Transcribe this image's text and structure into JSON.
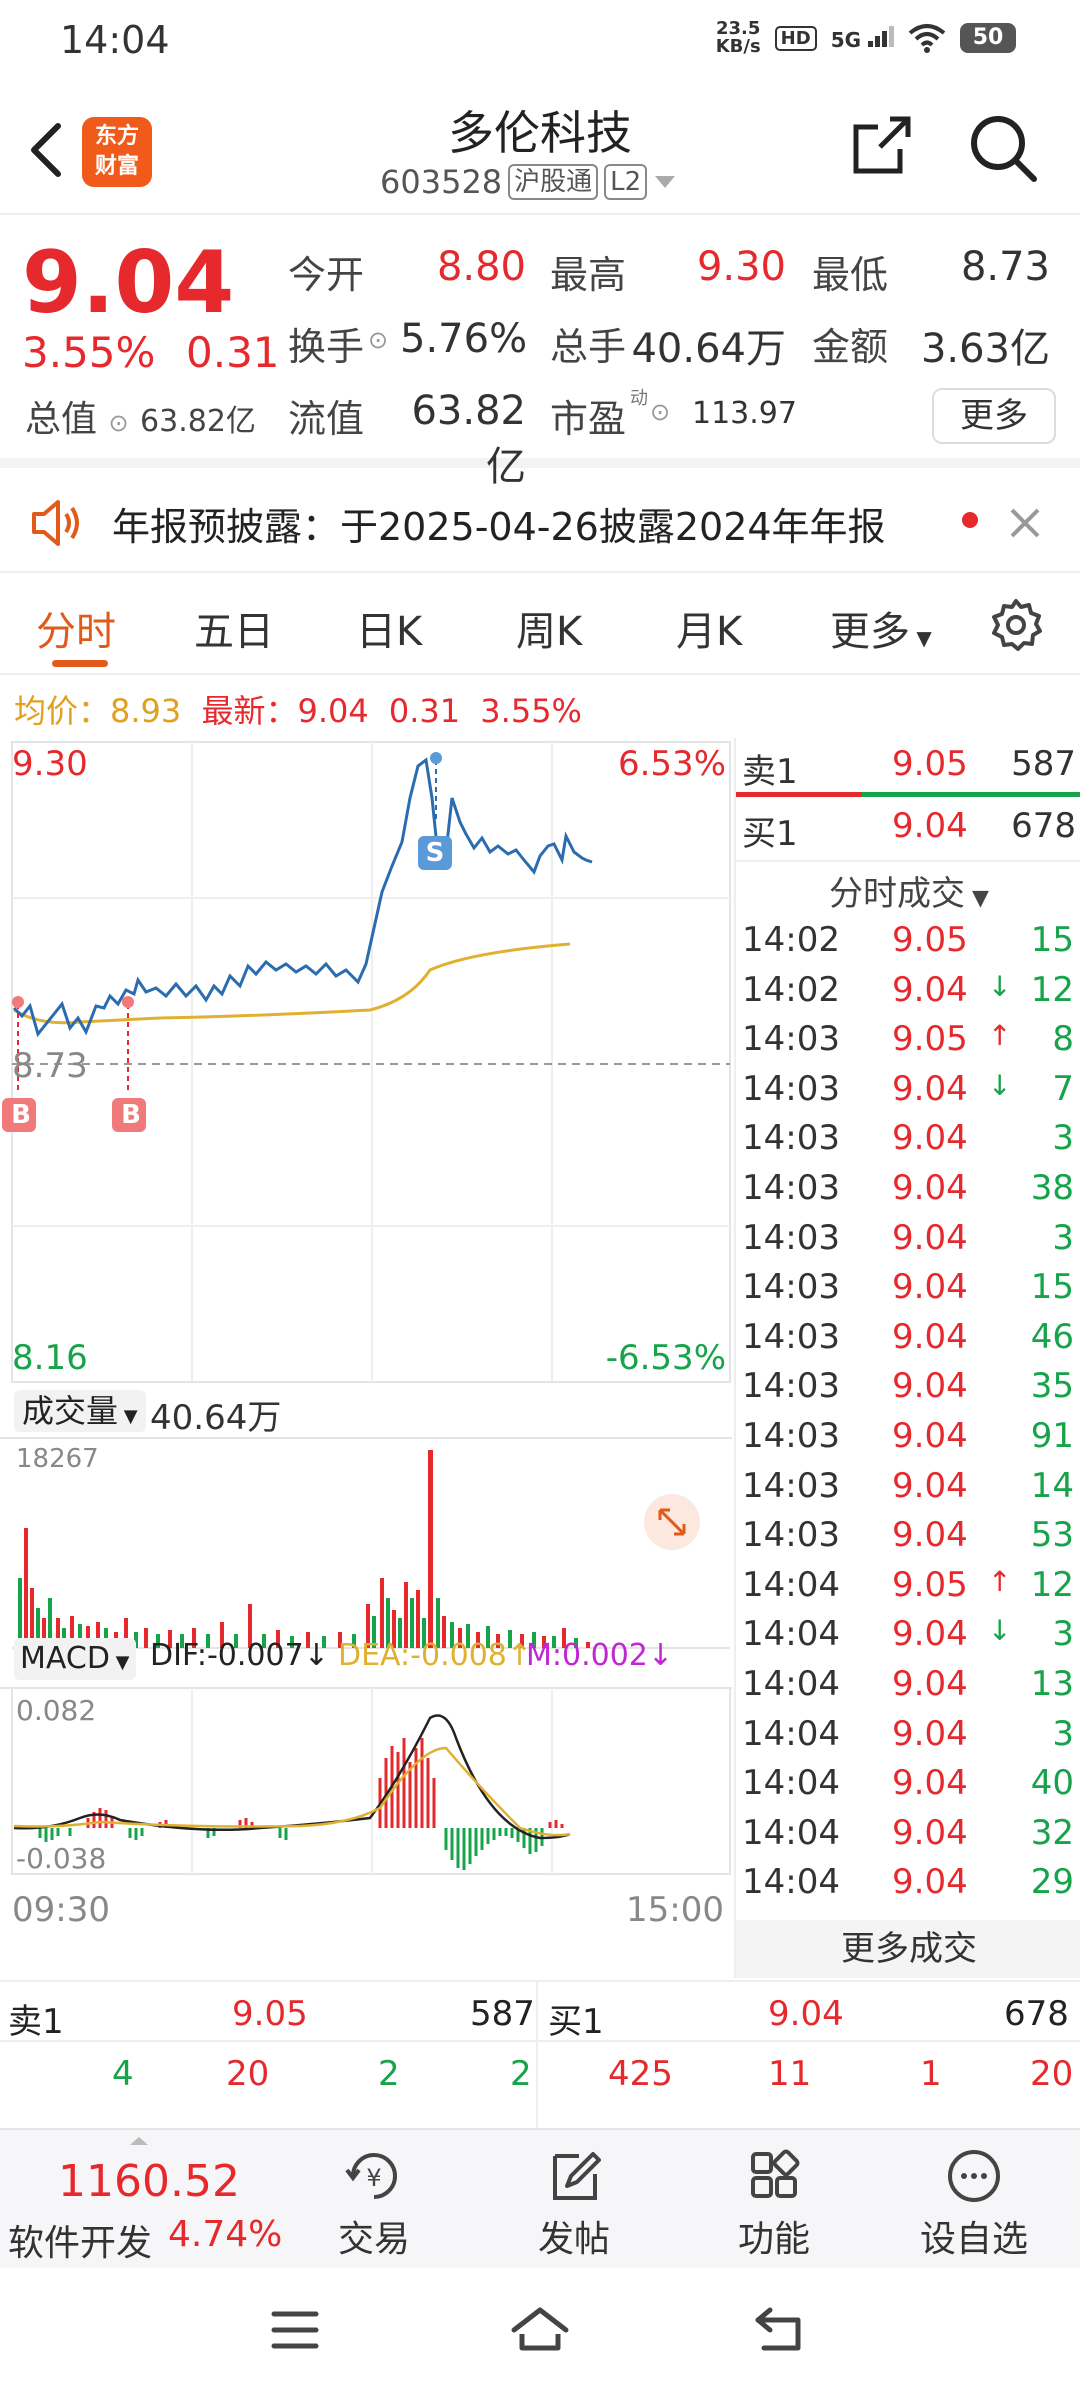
{
  "status": {
    "time": "14:04",
    "speed_value": "23.5",
    "speed_unit": "KB/s",
    "hd": "HD",
    "net": "5G",
    "battery": "50"
  },
  "header": {
    "title": "多伦科技",
    "code": "603528",
    "tag1": "沪股通",
    "tag2": "L2",
    "logo_line1": "东方",
    "logo_line2": "财富"
  },
  "quote": {
    "price": "9.04",
    "change_pct": "3.55%",
    "change": "0.31",
    "total_value_label": "总值",
    "total_value": "63.82亿",
    "open_label": "今开",
    "open": "8.80",
    "high_label": "最高",
    "high": "9.30",
    "low_label": "最低",
    "low": "8.73",
    "turnover_label": "换手",
    "turnover": "5.76%",
    "volume_label": "总手",
    "volume": "40.64万",
    "amount_label": "金额",
    "amount": "3.63亿",
    "float_label": "流值",
    "float_value": "63.82亿",
    "pe_label": "市盈",
    "pe_sup": "动",
    "pe": "113.97",
    "more": "更多"
  },
  "notice": {
    "text": "年报预披露：于2025-04-26披露2024年年报"
  },
  "tabs": [
    "分时",
    "五日",
    "日K",
    "周K",
    "月K",
    "更多"
  ],
  "avg": {
    "avg_label": "均价：",
    "avg": "8.93",
    "latest_label": "最新：",
    "latest": "9.04",
    "chg": "0.31",
    "pct": "3.55%"
  },
  "chart": {
    "y_high": "9.30",
    "y_high_pct": "6.53%",
    "y_mid": "8.73",
    "y_low": "8.16",
    "y_low_pct": "-6.53%",
    "vol_label": "成交量",
    "vol_value": "40.64万",
    "vol_max": "18267",
    "macd_label": "MACD",
    "dif": "DIF:-0.007",
    "dea": "DEA:-0.008",
    "m": "M:0.002",
    "macd_max": "0.082",
    "macd_min": "-0.038",
    "t_start": "09:30",
    "t_end": "15:00",
    "marker_b": "B",
    "marker_s": "S"
  },
  "trades": {
    "sell1_label": "卖1",
    "sell1_price": "9.05",
    "sell1_vol": "587",
    "buy1_label": "买1",
    "buy1_price": "9.04",
    "buy1_vol": "678",
    "section_title": "分时成交",
    "rows": [
      {
        "t": "14:02",
        "p": "9.05",
        "a": "",
        "v": "15"
      },
      {
        "t": "14:02",
        "p": "9.04",
        "a": "↓",
        "v": "12"
      },
      {
        "t": "14:03",
        "p": "9.05",
        "a": "↑",
        "v": "8"
      },
      {
        "t": "14:03",
        "p": "9.04",
        "a": "↓",
        "v": "7"
      },
      {
        "t": "14:03",
        "p": "9.04",
        "a": "",
        "v": "3"
      },
      {
        "t": "14:03",
        "p": "9.04",
        "a": "",
        "v": "38"
      },
      {
        "t": "14:03",
        "p": "9.04",
        "a": "",
        "v": "3"
      },
      {
        "t": "14:03",
        "p": "9.04",
        "a": "",
        "v": "15"
      },
      {
        "t": "14:03",
        "p": "9.04",
        "a": "",
        "v": "46"
      },
      {
        "t": "14:03",
        "p": "9.04",
        "a": "",
        "v": "35"
      },
      {
        "t": "14:03",
        "p": "9.04",
        "a": "",
        "v": "91"
      },
      {
        "t": "14:03",
        "p": "9.04",
        "a": "",
        "v": "14"
      },
      {
        "t": "14:03",
        "p": "9.04",
        "a": "",
        "v": "53"
      },
      {
        "t": "14:04",
        "p": "9.05",
        "a": "↑",
        "v": "12"
      },
      {
        "t": "14:04",
        "p": "9.04",
        "a": "↓",
        "v": "3"
      },
      {
        "t": "14:04",
        "p": "9.04",
        "a": "",
        "v": "13"
      },
      {
        "t": "14:04",
        "p": "9.04",
        "a": "",
        "v": "3"
      },
      {
        "t": "14:04",
        "p": "9.04",
        "a": "",
        "v": "40"
      },
      {
        "t": "14:04",
        "p": "9.04",
        "a": "",
        "v": "32"
      },
      {
        "t": "14:04",
        "p": "9.04",
        "a": "",
        "v": "29"
      }
    ],
    "more": "更多成交"
  },
  "book": {
    "sell_label": "卖1",
    "sell_price": "9.05",
    "sell_vol": "587",
    "buy_label": "买1",
    "buy_price": "9.04",
    "buy_vol": "678",
    "sell_detail": [
      "4",
      "20",
      "2",
      "2"
    ],
    "buy_detail": [
      "425",
      "11",
      "1",
      "20"
    ]
  },
  "toolbar": {
    "index_value": "1160.52",
    "index_name": "软件开发",
    "index_pct": "4.74%",
    "trade": "交易",
    "post": "发帖",
    "func": "功能",
    "watch": "设自选"
  },
  "colors": {
    "up": "#e5292d",
    "down": "#16a34a",
    "accent": "#e05a1a",
    "avg_line": "#e0b030",
    "price_line": "#2b6cb0"
  }
}
